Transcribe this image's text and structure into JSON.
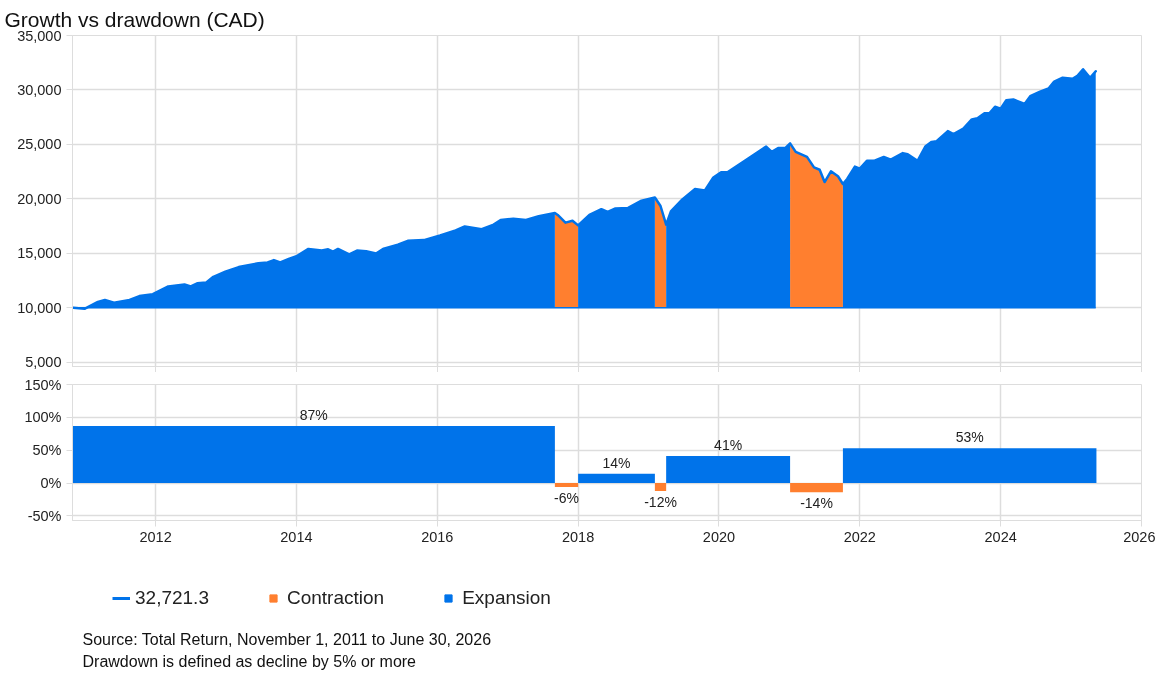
{
  "chart_data": [
    {
      "type": "area",
      "title": "Growth vs drawdown (CAD)",
      "ref_lines": [
        {
          "axis": "y",
          "value": 10000,
          "color": "#0073ea"
        }
      ],
      "x": [
        2010.83,
        2010.99,
        2011.18,
        2011.28,
        2011.41,
        2011.63,
        2011.77,
        2011.96,
        2012.18,
        2012.41,
        2012.5,
        2012.59,
        2012.72,
        2012.82,
        2012.99,
        2013.18,
        2013.46,
        2013.59,
        2013.68,
        2013.77,
        2013.9,
        2014.0,
        2014.17,
        2014.36,
        2014.45,
        2014.52,
        2014.59,
        2014.75,
        2014.86,
        2014.99,
        2015.13,
        2015.24,
        2015.44,
        2015.58,
        2015.81,
        2016.04,
        2016.26,
        2016.39,
        2016.63,
        2016.8,
        2016.9,
        2017.08,
        2017.26,
        2017.44,
        2017.67,
        2017.71,
        2017.82,
        2017.92,
        2018.0,
        2018.16,
        2018.33,
        2018.42,
        2018.53,
        2018.71,
        2018.9,
        2019.09,
        2019.17,
        2019.25,
        2019.32,
        2019.48,
        2019.66,
        2019.8,
        2019.92,
        2020.03,
        2020.12,
        2020.34,
        2020.67,
        2020.75,
        2020.84,
        2020.94,
        2021.01,
        2021.09,
        2021.25,
        2021.35,
        2021.43,
        2021.5,
        2021.59,
        2021.69,
        2021.76,
        2021.82,
        2021.93,
        2022.0,
        2022.1,
        2022.2,
        2022.34,
        2022.44,
        2022.61,
        2022.68,
        2022.82,
        2022.93,
        2023.02,
        2023.09,
        2023.25,
        2023.33,
        2023.47,
        2023.59,
        2023.67,
        2023.77,
        2023.84,
        2023.92,
        2024.0,
        2024.08,
        2024.18,
        2024.34,
        2024.42,
        2024.56,
        2024.68,
        2024.76,
        2024.88,
        2025.02,
        2025.09,
        2025.17,
        2025.27,
        2025.35
      ],
      "series": [
        {
          "type": "line",
          "name": "32,721.3",
          "color": "#0073ea",
          "values": [
            10000,
            9900,
            10530,
            10710,
            10460,
            10710,
            11070,
            11240,
            11950,
            12130,
            11950,
            12240,
            12310,
            12840,
            13300,
            13730,
            14080,
            14150,
            14370,
            14150,
            14510,
            14720,
            15400,
            15250,
            15360,
            15150,
            15400,
            14900,
            15250,
            15180,
            14970,
            15430,
            15790,
            16140,
            16210,
            16640,
            17100,
            17460,
            17210,
            17630,
            18060,
            18170,
            18060,
            18410,
            18700,
            18520,
            17810,
            17990,
            17560,
            18520,
            19050,
            18800,
            19120,
            19160,
            19830,
            20120,
            19340,
            17630,
            18880,
            19940,
            20900,
            20760,
            21960,
            22430,
            22430,
            23380,
            24800,
            24310,
            24660,
            24660,
            25090,
            24310,
            23850,
            22890,
            22670,
            21540,
            22530,
            22070,
            21360,
            21820,
            22960,
            22780,
            23490,
            23490,
            23850,
            23600,
            24200,
            24090,
            23490,
            24800,
            25230,
            25300,
            26220,
            25940,
            26440,
            27290,
            27400,
            27860,
            27860,
            28460,
            28280,
            29060,
            29130,
            28710,
            29420,
            29840,
            30130,
            30770,
            31120,
            31020,
            31300,
            31900,
            31120,
            31720
          ]
        },
        {
          "name": "Contraction",
          "color": "#ff7f2f",
          "values": [
            null,
            null,
            null,
            null,
            null,
            null,
            null,
            null,
            null,
            null,
            null,
            null,
            null,
            null,
            null,
            null,
            null,
            null,
            null,
            null,
            null,
            null,
            null,
            null,
            null,
            null,
            null,
            null,
            null,
            null,
            null,
            null,
            null,
            null,
            null,
            null,
            null,
            null,
            null,
            null,
            null,
            null,
            null,
            null,
            18700,
            18520,
            17810,
            17990,
            17560,
            null,
            null,
            null,
            null,
            null,
            null,
            20120,
            19340,
            17630,
            null,
            null,
            null,
            null,
            null,
            null,
            null,
            null,
            null,
            null,
            null,
            null,
            25090,
            24310,
            23850,
            22890,
            22670,
            21540,
            22530,
            22070,
            21360,
            null,
            null,
            null,
            null,
            null,
            null,
            null,
            null,
            null,
            null,
            null,
            null,
            null,
            null,
            null,
            null,
            null,
            null,
            null,
            null,
            null,
            null,
            null,
            null,
            null,
            null,
            null,
            null,
            null,
            null,
            null,
            null,
            null,
            null,
            null
          ]
        },
        {
          "name": "Expansion",
          "color": "#0073ea",
          "values": [
            10000,
            9900,
            10530,
            10710,
            10460,
            10710,
            11070,
            11240,
            11950,
            12130,
            11950,
            12240,
            12310,
            12840,
            13300,
            13730,
            14080,
            14150,
            14370,
            14150,
            14510,
            14720,
            15400,
            15250,
            15360,
            15150,
            15400,
            14900,
            15250,
            15180,
            14970,
            15430,
            15790,
            16140,
            16210,
            16640,
            17100,
            17460,
            17210,
            17630,
            18060,
            18170,
            18060,
            18410,
            18700,
            null,
            null,
            null,
            17560,
            18520,
            19050,
            18800,
            19120,
            19160,
            19830,
            20120,
            null,
            17630,
            18880,
            19940,
            20900,
            20760,
            21960,
            22430,
            22430,
            23380,
            24800,
            24310,
            24660,
            24660,
            25090,
            null,
            null,
            null,
            null,
            null,
            null,
            null,
            21360,
            21820,
            22960,
            22780,
            23490,
            23490,
            23850,
            23600,
            24200,
            24090,
            23490,
            24800,
            25230,
            25300,
            26220,
            25940,
            26440,
            27290,
            27400,
            27860,
            27860,
            28460,
            28280,
            29060,
            29130,
            28710,
            29420,
            29840,
            30130,
            30770,
            31120,
            31020,
            31300,
            31900,
            31120,
            31720
          ]
        }
      ],
      "xlim": [
        2010.82,
        2026
      ],
      "xticks": [
        2012,
        2014,
        2016,
        2018,
        2020,
        2022,
        2024,
        2026
      ],
      "ylim": [
        4600,
        35000
      ],
      "yticks": [
        {
          "value": 5000,
          "label": "5,000"
        },
        {
          "value": 10000,
          "label": "10,000"
        },
        {
          "value": 15000,
          "label": "15,000"
        },
        {
          "value": 20000,
          "label": "20,000"
        },
        {
          "value": 25000,
          "label": "25,000"
        },
        {
          "value": 30000,
          "label": "30,000"
        },
        {
          "value": 35000,
          "label": "35,000"
        }
      ],
      "grid": true,
      "tick_labels": "y",
      "legend": "bottom"
    },
    {
      "type": "histogram",
      "bins": [
        2010.82,
        2017.67,
        2018.0,
        2019.09,
        2019.25,
        2021.01,
        2021.76,
        2025.36
      ],
      "values": [
        87,
        -6,
        14,
        -12,
        41,
        -14,
        53
      ],
      "colors": [
        "#0073ea",
        "#ff7f2f",
        "#0073ea",
        "#ff7f2f",
        "#0073ea",
        "#ff7f2f",
        "#0073ea"
      ],
      "value_labels": [
        "87%",
        "-6%",
        "14%",
        "-12%",
        "41%",
        "-14%",
        "53%"
      ],
      "xlim": [
        2010.82,
        2026
      ],
      "xticks": [
        2012,
        2014,
        2016,
        2018,
        2020,
        2022,
        2024,
        2026
      ],
      "ylim": [
        -57,
        150
      ],
      "yticks": [
        {
          "value": -50,
          "label": "-50%"
        },
        {
          "value": 0,
          "label": "0%"
        },
        {
          "value": 50,
          "label": "50%"
        },
        {
          "value": 100,
          "label": "100%"
        },
        {
          "value": 150,
          "label": "150%"
        }
      ],
      "grid": true,
      "annotations": [
        "Source: Total Return, November 1, 2011 to June 30, 2026",
        "Drawdown is defined as decline by 5% or more"
      ]
    }
  ]
}
